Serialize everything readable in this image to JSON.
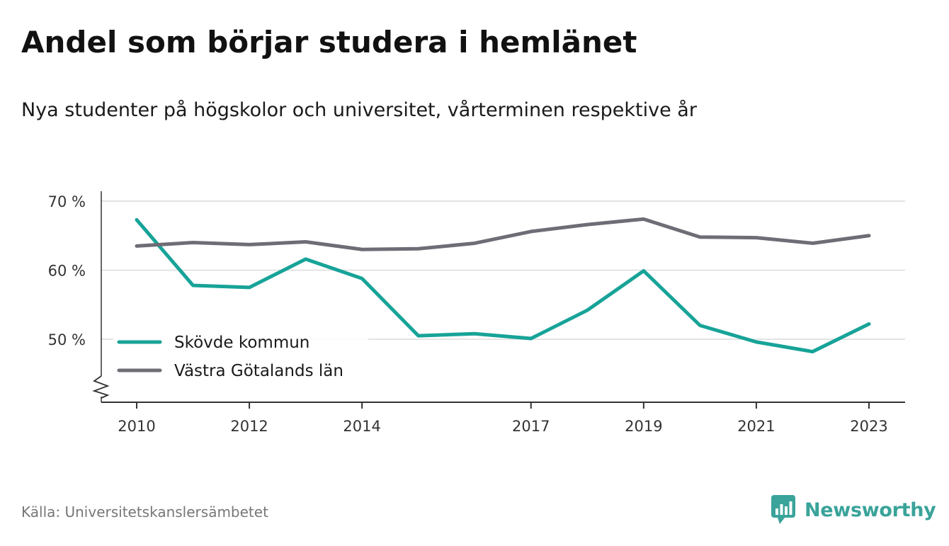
{
  "header": {
    "title": "Andel som börjar studera i hemlänet",
    "subtitle": "Nya studenter på högskolor och universitet, vårterminen respektive år"
  },
  "footer": {
    "source": "Källa: Universitetskanslersämbetet",
    "brand": "Newsworthy",
    "brand_icon": "bar-chart-speech-bubble-icon",
    "brand_color": "#3aa39a"
  },
  "chart_data": {
    "type": "line",
    "title": "Andel som börjar studera i hemlänet",
    "subtitle": "Nya studenter på högskolor och universitet, vårterminen respektive år",
    "x": [
      2010,
      2011,
      2012,
      2013,
      2014,
      2015,
      2016,
      2017,
      2018,
      2019,
      2020,
      2021,
      2022,
      2023
    ],
    "x_tick_labels": [
      "2010",
      "2012",
      "2014",
      "2017",
      "2019",
      "2021",
      "2023"
    ],
    "y_ticks": [
      50,
      60,
      70
    ],
    "y_tick_labels": [
      "50 %",
      "60 %",
      "70 %"
    ],
    "ylim": [
      41,
      72
    ],
    "y_axis_break": true,
    "grid": true,
    "legend_position": "left",
    "series": [
      {
        "name": "Skövde kommun",
        "color": "#17a398",
        "values": [
          67.3,
          57.8,
          57.5,
          61.6,
          58.8,
          50.5,
          50.8,
          50.1,
          54.2,
          59.9,
          52.0,
          49.6,
          48.2,
          52.2
        ]
      },
      {
        "name": "Västra Götalands län",
        "color": "#6e6c75",
        "values": [
          63.5,
          64.0,
          63.7,
          64.1,
          63.0,
          63.1,
          63.9,
          65.6,
          66.6,
          67.4,
          64.8,
          64.7,
          63.9,
          65.0
        ]
      }
    ]
  }
}
